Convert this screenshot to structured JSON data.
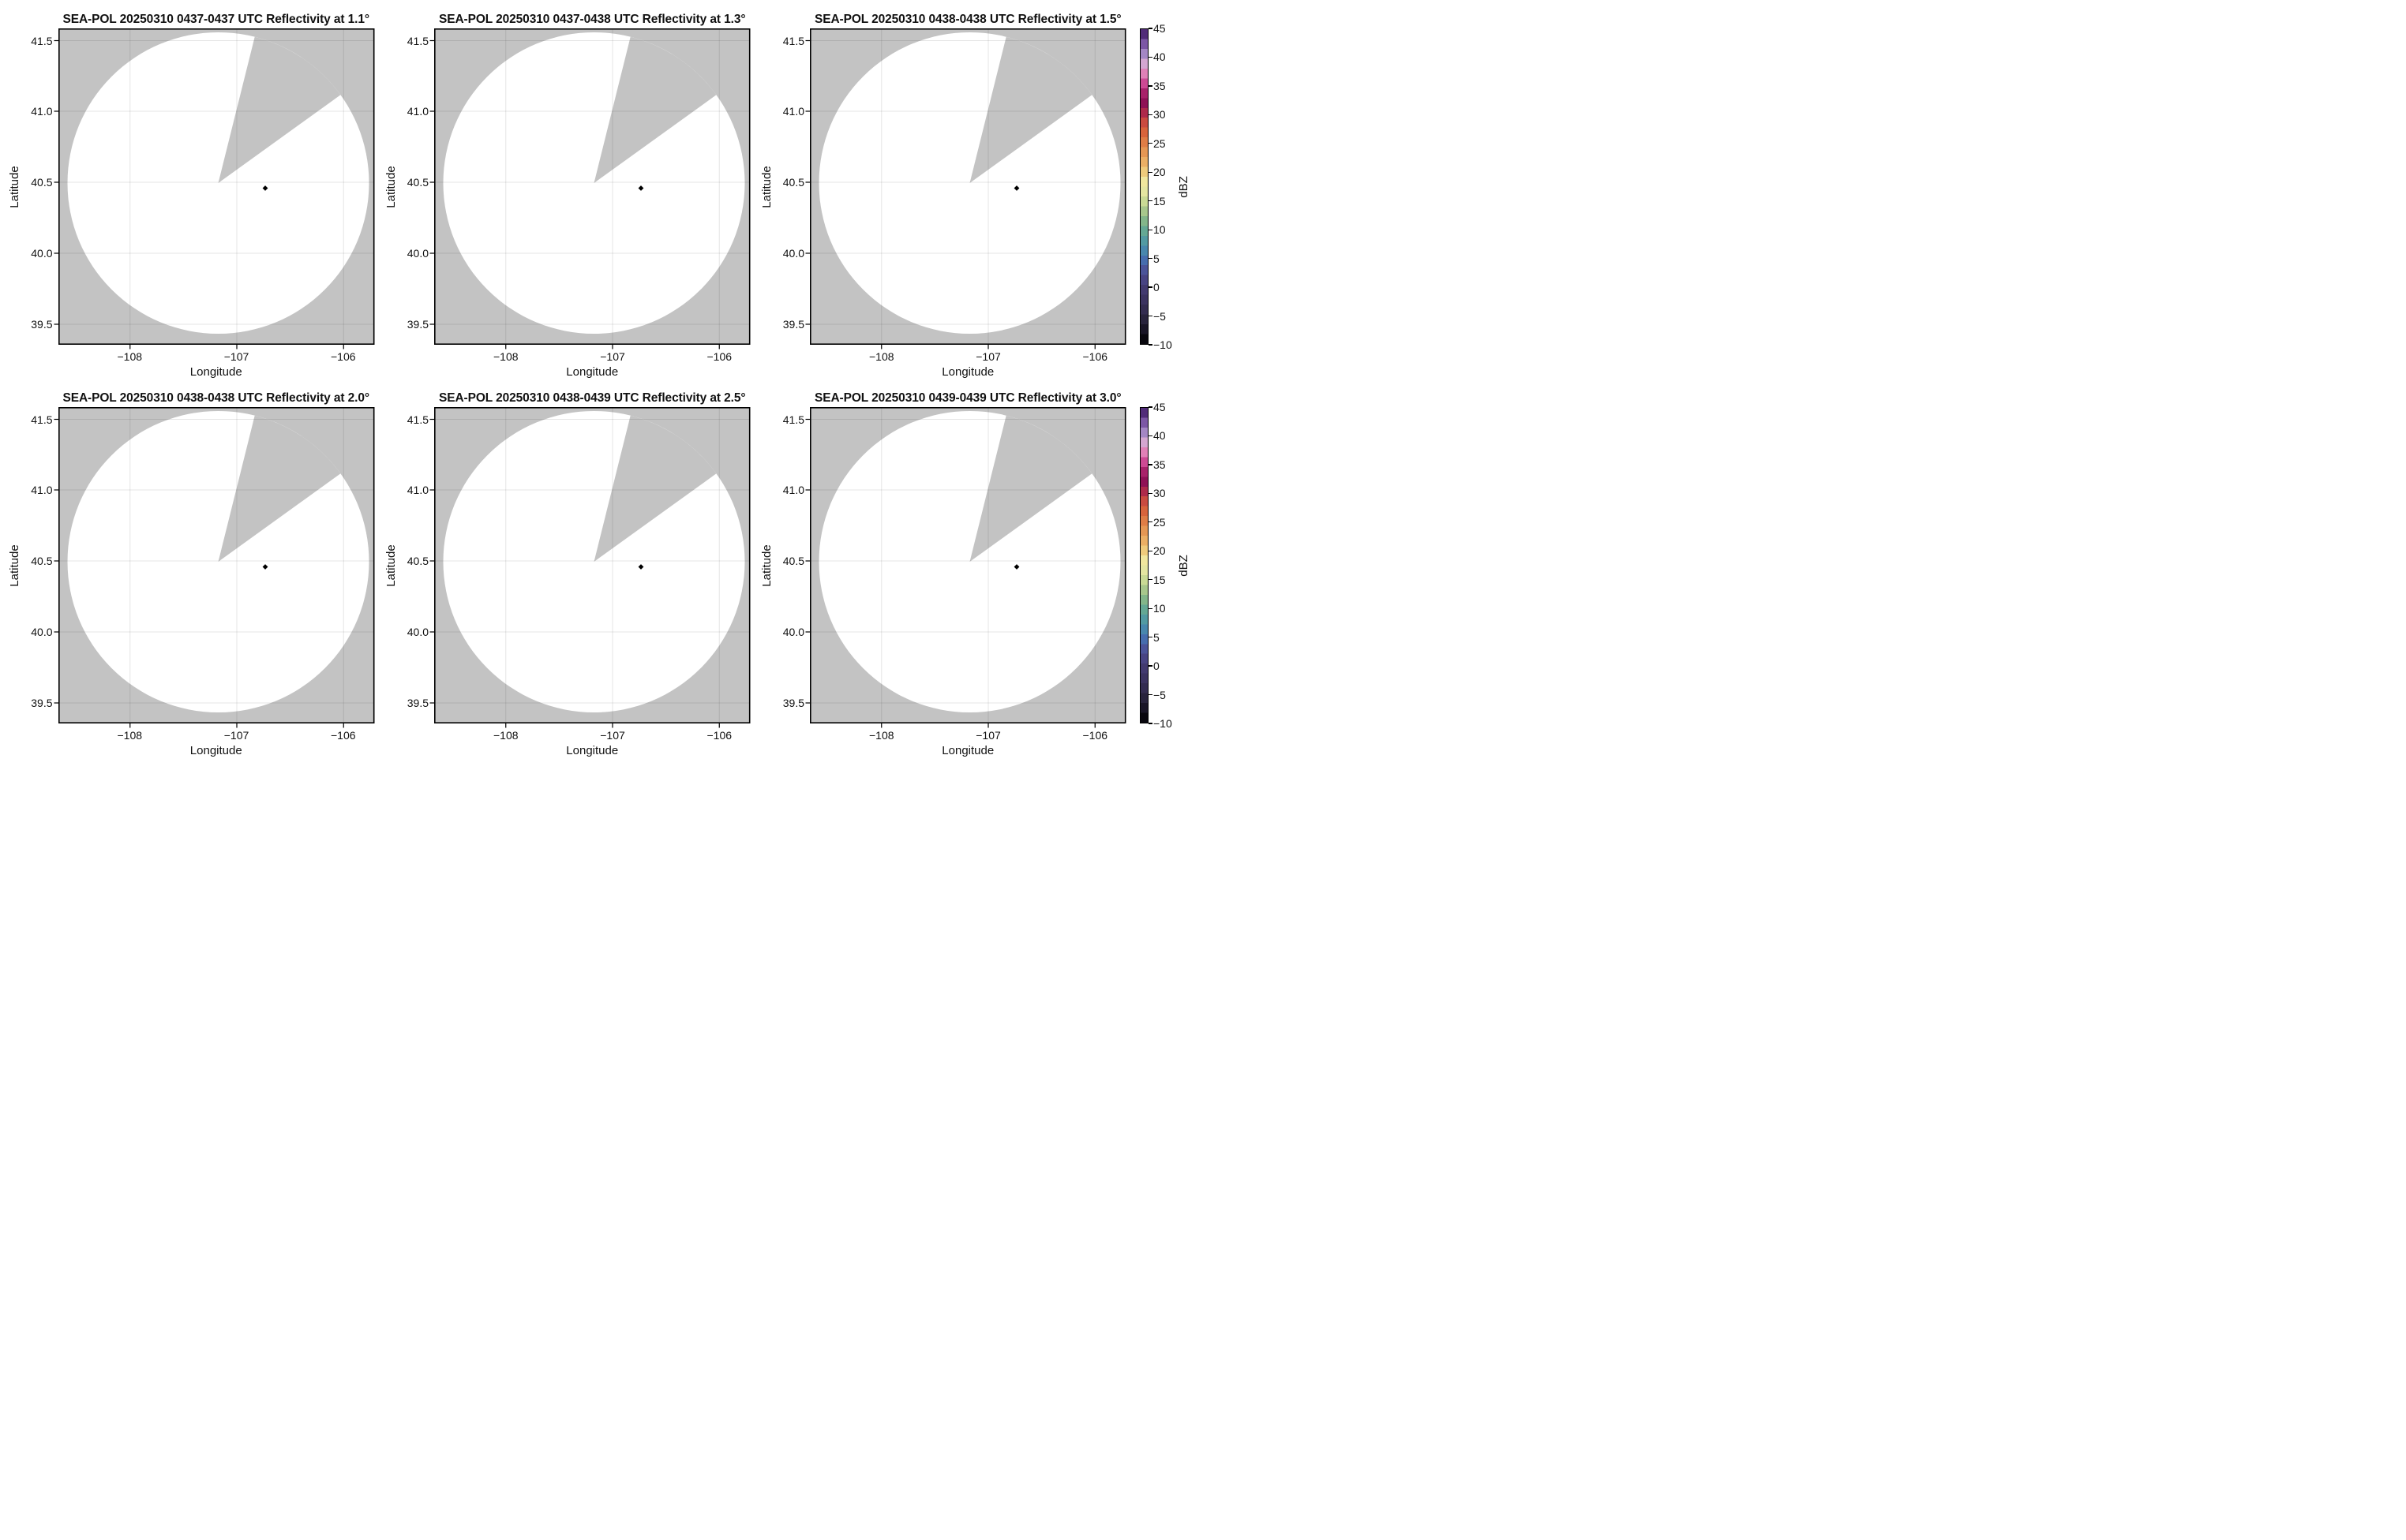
{
  "chart_data": {
    "type": "heatmap",
    "figure": "2x3 grid of SEA-POL radar PPI reflectivity sweeps; each panel shows the radar coverage disk (no significant echo, rendered white) over a gray background, with a blocked sector wedge missing from the disk, a black diamond site marker, and a shared dBZ colorbar for each row",
    "panels": [
      {
        "title": "SEA-POL 20250310 0437-0437 UTC Reflectivity at 1.1°",
        "radar": "SEA-POL",
        "date": "20250310",
        "time_utc": "0437-0437",
        "elevation_deg": 1.1
      },
      {
        "title": "SEA-POL 20250310 0437-0438 UTC Reflectivity at 1.3°",
        "radar": "SEA-POL",
        "date": "20250310",
        "time_utc": "0437-0438",
        "elevation_deg": 1.3
      },
      {
        "title": "SEA-POL 20250310 0438-0438 UTC Reflectivity at 1.5°",
        "radar": "SEA-POL",
        "date": "20250310",
        "time_utc": "0438-0438",
        "elevation_deg": 1.5
      },
      {
        "title": "SEA-POL 20250310 0438-0438 UTC Reflectivity at 2.0°",
        "radar": "SEA-POL",
        "date": "20250310",
        "time_utc": "0438-0438",
        "elevation_deg": 2.0
      },
      {
        "title": "SEA-POL 20250310 0438-0439 UTC Reflectivity at 2.5°",
        "radar": "SEA-POL",
        "date": "20250310",
        "time_utc": "0438-0439",
        "elevation_deg": 2.5
      },
      {
        "title": "SEA-POL 20250310 0439-0439 UTC Reflectivity at 3.0°",
        "radar": "SEA-POL",
        "date": "20250310",
        "time_utc": "0439-0439",
        "elevation_deg": 3.0
      }
    ],
    "xlabel": "Longitude",
    "ylabel": "Latitude",
    "x_ticks": [
      -108,
      -107,
      -106
    ],
    "y_ticks": [
      41.5,
      41.0,
      40.5,
      40.0,
      39.5
    ],
    "xlim": [
      -108.67,
      -105.71
    ],
    "ylim": [
      39.36,
      41.59
    ],
    "grid": true,
    "colorbar": {
      "label": "dBZ",
      "min": -10,
      "max": 45,
      "ticks": [
        45,
        40,
        35,
        30,
        25,
        20,
        15,
        10,
        5,
        0,
        -5,
        -10
      ]
    },
    "marker": {
      "lon": -106.77,
      "lat": 40.45,
      "shape": "diamond",
      "color": "#000000"
    },
    "coverage_disk": {
      "center_lon": -107.18,
      "center_lat": 40.49,
      "radius_deg_lat": 1.06,
      "blocked_sector_azimuth_deg": [
        14,
        54
      ]
    }
  },
  "labels": {
    "x_tick_labels": [
      "−108",
      "−107",
      "−106"
    ],
    "y_tick_labels": [
      "41.5",
      "41.0",
      "40.5",
      "40.0",
      "39.5"
    ],
    "cbar_tick_labels": [
      "45",
      "40",
      "35",
      "30",
      "25",
      "20",
      "15",
      "10",
      "5",
      "0",
      "−5",
      "−10"
    ],
    "xlabel": "Longitude",
    "ylabel": "Latitude",
    "cbar_label": "dBZ"
  },
  "style": {
    "page_bg": "#ffffff",
    "panel_bg": "#c3c3c3",
    "coverage_fill": "#ffffff",
    "frame_color": "#000000",
    "marker_color": "#000000",
    "grid_rgba": "rgba(0,0,0,0.10)",
    "text_color": "#111111",
    "colormap_name": "ChaseSpectral-like",
    "colormap_stops": [
      [
        -10,
        "#000000"
      ],
      [
        -8.5,
        "#100c19"
      ],
      [
        -6,
        "#262138"
      ],
      [
        -4,
        "#332c50"
      ],
      [
        -2,
        "#3c3462"
      ],
      [
        0,
        "#443c74"
      ],
      [
        2,
        "#4b4a8e"
      ],
      [
        4,
        "#4a61a6"
      ],
      [
        5,
        "#4374b3"
      ],
      [
        7,
        "#4b90aa"
      ],
      [
        9,
        "#58a39a"
      ],
      [
        11,
        "#78b18a"
      ],
      [
        13,
        "#a4c58b"
      ],
      [
        15,
        "#ccdb95"
      ],
      [
        17,
        "#ebe8a4"
      ],
      [
        18,
        "#f2eda7"
      ],
      [
        19,
        "#f0dd8d"
      ],
      [
        21,
        "#eebb6e"
      ],
      [
        23,
        "#e79e58"
      ],
      [
        25,
        "#e08147"
      ],
      [
        27,
        "#d8633c"
      ],
      [
        29,
        "#c74641"
      ],
      [
        30,
        "#b63148"
      ],
      [
        31,
        "#a12050"
      ],
      [
        32,
        "#8e1055"
      ],
      [
        33.5,
        "#a01b62"
      ],
      [
        35,
        "#c53a85"
      ],
      [
        36,
        "#d458a0"
      ],
      [
        37.5,
        "#e288bb"
      ],
      [
        38.5,
        "#e2a7cf"
      ],
      [
        39.5,
        "#c6a6d4"
      ],
      [
        41,
        "#9c7fc0"
      ],
      [
        42.5,
        "#7a55a4"
      ],
      [
        44,
        "#552f7e"
      ],
      [
        45,
        "#371b59"
      ]
    ]
  }
}
